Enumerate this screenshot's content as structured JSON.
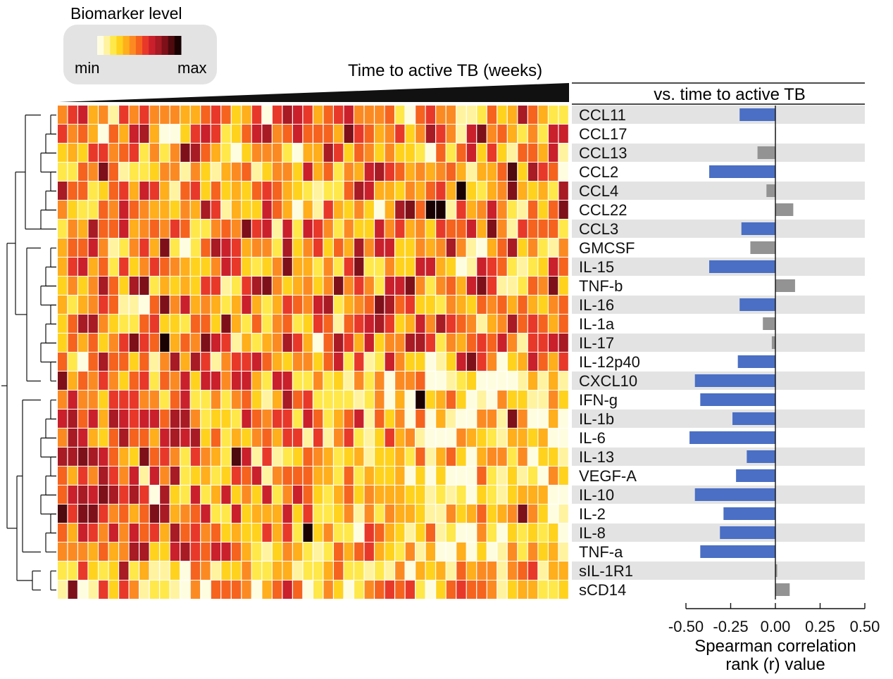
{
  "legend": {
    "title": "Biomarker level",
    "min_label": "min",
    "max_label": "max",
    "colors": [
      "#fffde0",
      "#fff3a0",
      "#ffe84a",
      "#ffd21e",
      "#ffae1c",
      "#fc8a22",
      "#f5631f",
      "#e8382a",
      "#c9202c",
      "#a81a24",
      "#7e1019",
      "#4e0a0e",
      "#1a0203"
    ]
  },
  "heatmap_header": "Time to active TB (weeks)",
  "bar_header": "vs. time to active TB",
  "chart_data": [
    {
      "type": "heatmap",
      "rows": [
        "CCL11",
        "CCL17",
        "CCL13",
        "CCL2",
        "CCL4",
        "CCL22",
        "CCL3",
        "GMCSF",
        "IL-15",
        "TNF-b",
        "IL-16",
        "IL-1a",
        "IL-17",
        "IL-12p40",
        "CXCL10",
        "IFN-g",
        "IL-1b",
        "IL-6",
        "IL-13",
        "VEGF-A",
        "IL-10",
        "IL-2",
        "IL-8",
        "TNF-a",
        "sIL-1R1",
        "sCD14"
      ],
      "n_columns": 50,
      "column_order": "increasing time to active TB (weeks)",
      "values": "min-max scaled biomarker level per cell; individual cell values not labeled"
    },
    {
      "type": "bar",
      "orientation": "horizontal",
      "categories": [
        "CCL11",
        "CCL17",
        "CCL13",
        "CCL2",
        "CCL4",
        "CCL22",
        "CCL3",
        "GMCSF",
        "IL-15",
        "TNF-b",
        "IL-16",
        "IL-1a",
        "IL-17",
        "IL-12p40",
        "CXCL10",
        "IFN-g",
        "IL-1b",
        "IL-6",
        "IL-13",
        "VEGF-A",
        "IL-10",
        "IL-2",
        "IL-8",
        "TNF-a",
        "sIL-1R1",
        "sCD14"
      ],
      "values": [
        -0.2,
        0.0,
        -0.1,
        -0.37,
        -0.05,
        0.1,
        -0.19,
        -0.14,
        -0.37,
        0.11,
        -0.2,
        -0.07,
        -0.02,
        -0.21,
        -0.45,
        -0.42,
        -0.24,
        -0.48,
        -0.16,
        -0.22,
        -0.45,
        -0.29,
        -0.31,
        -0.42,
        0.01,
        0.08
      ],
      "significant": [
        true,
        false,
        false,
        true,
        false,
        false,
        true,
        false,
        true,
        false,
        true,
        false,
        false,
        true,
        true,
        true,
        true,
        true,
        true,
        true,
        true,
        true,
        true,
        true,
        false,
        false
      ],
      "colors": {
        "significant": "#4a6fc4",
        "not_significant": "#939393"
      },
      "xlim": [
        -0.5,
        0.5
      ],
      "xticks": [
        -0.5,
        -0.25,
        0.0,
        0.25,
        0.5
      ],
      "xtick_labels": [
        "-0.50",
        "-0.25",
        "0.00",
        "0.25",
        "0.50"
      ],
      "xlabel_line1": "Spearman correlation",
      "xlabel_line2": "rank (r) value"
    }
  ]
}
